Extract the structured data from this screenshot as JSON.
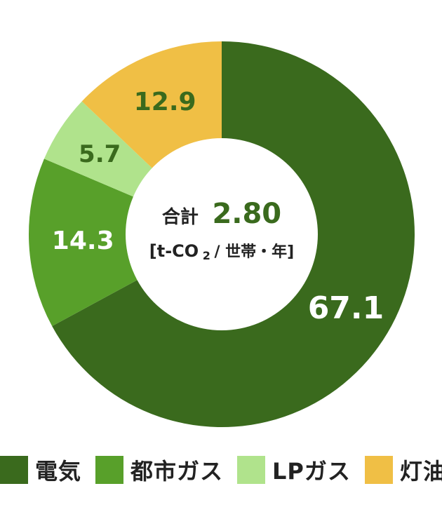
{
  "chart_data": {
    "type": "pie",
    "title": "",
    "categories": [
      "電気",
      "都市ガス",
      "LPガス",
      "灯油"
    ],
    "values": [
      67.1,
      14.3,
      5.7,
      12.9
    ],
    "value_labels": [
      "67.1",
      "14.3",
      "5.7",
      "12.9"
    ],
    "colors": [
      "#3a6a1d",
      "#58a02a",
      "#b0e38c",
      "#f0bf45"
    ],
    "label_colors": [
      "#ffffff",
      "#ffffff",
      "#3a6a1d",
      "#3a6a1d"
    ],
    "donut": true,
    "center_label": {
      "prefix": "合計",
      "value": "2.80",
      "unit_start": "[t-CO",
      "unit_sub": "2",
      "unit_end": "/ 世帯・年]"
    },
    "legend_position": "bottom"
  },
  "legend": {
    "items": [
      {
        "label": "電気",
        "color": "#3a6a1d"
      },
      {
        "label": "都市ガス",
        "color": "#58a02a"
      },
      {
        "label": "LPガス",
        "color": "#b0e38c"
      },
      {
        "label": "灯油",
        "color": "#f0bf45"
      }
    ]
  }
}
